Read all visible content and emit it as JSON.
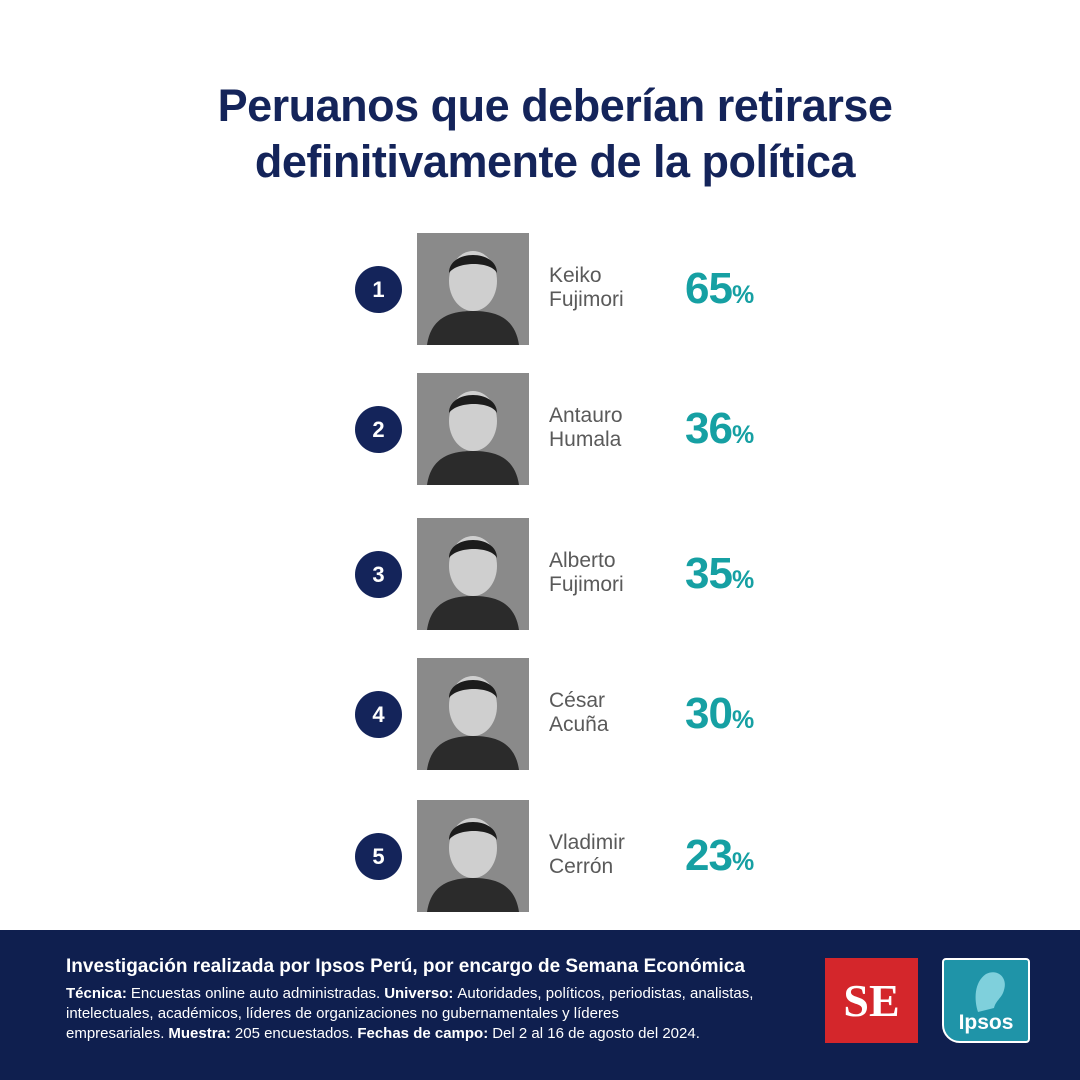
{
  "header": {
    "title_lines": [
      "Peruanos que deberían retirarse",
      "definitivamente de la política"
    ]
  },
  "items": [
    {
      "rank": 1,
      "name_lines": [
        "Keiko",
        "Fujimori"
      ],
      "value": 65,
      "unit": "%"
    },
    {
      "rank": 2,
      "name_lines": [
        "Antauro",
        "Humala"
      ],
      "value": 36,
      "unit": "%"
    },
    {
      "rank": 3,
      "name_lines": [
        "Alberto",
        "Fujimori"
      ],
      "value": 35,
      "unit": "%"
    },
    {
      "rank": 4,
      "name_lines": [
        "César",
        "Acuña"
      ],
      "value": 30,
      "unit": "%"
    },
    {
      "rank": 5,
      "name_lines": [
        "Vladimir",
        "Cerrón"
      ],
      "value": 23,
      "unit": "%"
    }
  ],
  "footer": {
    "heading": "Investigación realizada por Ipsos Perú, por encargo de Semana Económica",
    "details": [
      {
        "label": "Técnica:",
        "text": "Encuestas online auto administradas."
      },
      {
        "label": "Universo:",
        "text": "Autoridades, políticos, periodistas, analistas, intelectuales, académicos, líderes de organizaciones no gubernamentales y líderes empresariales."
      },
      {
        "label": "Muestra:",
        "text": "205 encuestados."
      },
      {
        "label": "Fechas de campo:",
        "text": "Del 2 al 16 de agosto del 2024."
      }
    ],
    "logos": {
      "se": "SE",
      "ipsos": "Ipsos"
    }
  }
}
